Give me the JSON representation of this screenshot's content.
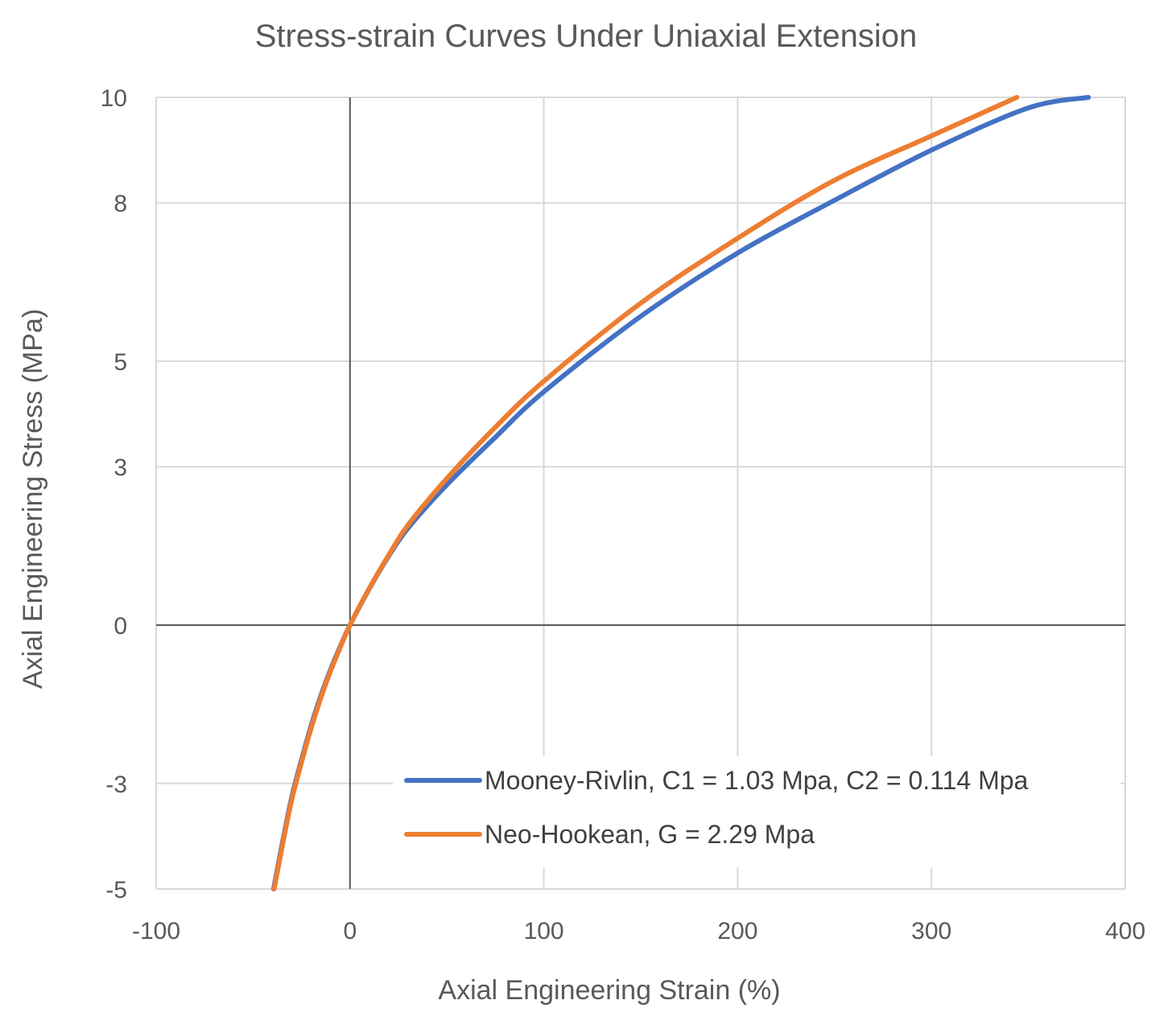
{
  "chart_data": {
    "type": "line",
    "title": "Stress-strain Curves Under Uniaxial Extension",
    "xlabel": "Axial Engineering Strain (%)",
    "ylabel": "Axial Engineering Stress (MPa)",
    "xlim": [
      -100,
      400
    ],
    "ylim": [
      -5,
      10
    ],
    "x_ticks": [
      -100,
      0,
      100,
      200,
      300,
      400
    ],
    "y_ticks": [
      -5,
      -3,
      0,
      3,
      5,
      8,
      10
    ],
    "x_tick_labels": [
      "-100",
      "0",
      "100",
      "200",
      "300",
      "400"
    ],
    "y_tick_labels": [
      "-5",
      "-3",
      "0",
      "3",
      "5",
      "8",
      "10"
    ],
    "grid": true,
    "legend_position": "bottom-right",
    "series": [
      {
        "name": "Mooney-Rivlin, C1 = 1.03 Mpa, C2 = 0.114 Mpa",
        "color": "#4472C4",
        "x": [
          -39.4,
          -35,
          -30,
          -25,
          -20,
          -15,
          -10,
          -5,
          0,
          10,
          20,
          30,
          50,
          75,
          100,
          150,
          200,
          250,
          300,
          350,
          381
        ],
        "y": [
          -5.0,
          -4.15,
          -3.25,
          -2.55,
          -1.9,
          -1.33,
          -0.84,
          -0.4,
          0,
          0.69,
          1.31,
          1.84,
          2.66,
          3.56,
          4.42,
          5.85,
          7.05,
          8.05,
          9.0,
          9.8,
          10.0
        ]
      },
      {
        "name": "Neo-Hookean, G = 2.29 Mpa",
        "color": "#ED7D31",
        "x": [
          -39.1,
          -35,
          -30,
          -25,
          -20,
          -15,
          -10,
          -5,
          0,
          10,
          20,
          30,
          50,
          75,
          100,
          150,
          200,
          250,
          300,
          344
        ],
        "y": [
          -5.0,
          -4.2,
          -3.3,
          -2.6,
          -1.95,
          -1.37,
          -0.87,
          -0.42,
          0,
          0.7,
          1.33,
          1.9,
          2.78,
          3.75,
          4.62,
          6.1,
          7.33,
          8.43,
          9.27,
          10.0
        ]
      }
    ]
  }
}
